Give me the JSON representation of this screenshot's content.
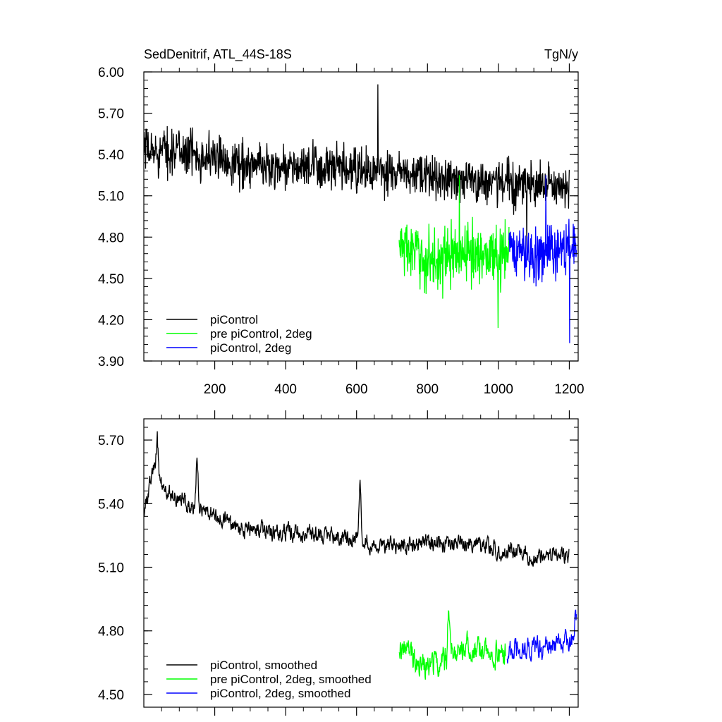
{
  "chart_data": [
    {
      "type": "line",
      "title": "SedDenitrif, ATL_44S-18S",
      "units": "TgN/y",
      "xlim": [
        0,
        1225
      ],
      "ylim": [
        3.9,
        6.0
      ],
      "xticks": [
        200,
        400,
        600,
        800,
        1000,
        1200
      ],
      "xtick_labels": [
        "200",
        "400",
        "600",
        "800",
        "1000",
        "1200"
      ],
      "yticks": [
        3.9,
        4.2,
        4.5,
        4.8,
        5.1,
        5.4,
        5.7,
        6.0
      ],
      "ytick_labels": [
        "3.90",
        "4.20",
        "4.50",
        "4.80",
        "5.10",
        "5.40",
        "5.70",
        "6.00"
      ],
      "legend_position": "bottom-left",
      "grid": false,
      "series": [
        {
          "name": "piControl",
          "color": "#000000",
          "x_range": [
            1,
            1200
          ],
          "trend": [
            [
              0,
              5.42
            ],
            [
              100,
              5.43
            ],
            [
              300,
              5.32
            ],
            [
              500,
              5.3
            ],
            [
              700,
              5.26
            ],
            [
              900,
              5.22
            ],
            [
              1100,
              5.18
            ],
            [
              1200,
              5.14
            ]
          ],
          "noise": 0.13,
          "extrema": {
            "max": 5.91,
            "min": 4.71
          }
        },
        {
          "name": "pre piControl, 2deg",
          "color": "#00ff00",
          "x_range": [
            720,
            1030
          ],
          "trend": [
            [
              720,
              4.75
            ],
            [
              800,
              4.62
            ],
            [
              900,
              4.68
            ],
            [
              1030,
              4.68
            ]
          ],
          "noise": 0.17,
          "extrema": {
            "max": 5.25,
            "min": 4.14
          }
        },
        {
          "name": "piControl, 2deg",
          "color": "#0000ff",
          "x_range": [
            1030,
            1220
          ],
          "trend": [
            [
              1030,
              4.7
            ],
            [
              1120,
              4.67
            ],
            [
              1220,
              4.75
            ]
          ],
          "noise": 0.16,
          "extrema": {
            "max": 5.25,
            "min": 4.03
          }
        }
      ]
    },
    {
      "type": "line",
      "xlim": [
        0,
        1225
      ],
      "ylim": [
        4.44,
        5.8
      ],
      "xticks": [
        200,
        400,
        600,
        800,
        1000,
        1200
      ],
      "yticks": [
        4.5,
        4.8,
        5.1,
        5.4,
        5.7
      ],
      "ytick_labels": [
        "4.50",
        "4.80",
        "5.10",
        "5.40",
        "5.70"
      ],
      "legend_position": "bottom-left",
      "grid": false,
      "series": [
        {
          "name": "piControl, smoothed",
          "color": "#000000",
          "x_range": [
            1,
            1200
          ],
          "trend": [
            [
              0,
              5.36
            ],
            [
              30,
              5.58
            ],
            [
              60,
              5.46
            ],
            [
              150,
              5.38
            ],
            [
              300,
              5.27
            ],
            [
              500,
              5.26
            ],
            [
              700,
              5.2
            ],
            [
              900,
              5.22
            ],
            [
              1100,
              5.15
            ],
            [
              1200,
              5.16
            ]
          ],
          "noise": 0.045,
          "peaks": [
            [
              38,
              5.7
            ],
            [
              150,
              5.63
            ],
            [
              610,
              5.5
            ]
          ]
        },
        {
          "name": "pre piControl, 2deg, smoothed",
          "color": "#00ff00",
          "x_range": [
            720,
            1020
          ],
          "trend": [
            [
              720,
              4.74
            ],
            [
              800,
              4.62
            ],
            [
              900,
              4.73
            ],
            [
              1020,
              4.68
            ]
          ],
          "noise": 0.07,
          "peaks": [
            [
              860,
              4.92
            ]
          ]
        },
        {
          "name": "piControl, 2deg, smoothed",
          "color": "#0000ff",
          "x_range": [
            1025,
            1220
          ],
          "trend": [
            [
              1025,
              4.7
            ],
            [
              1120,
              4.72
            ],
            [
              1220,
              4.75
            ]
          ],
          "noise": 0.06,
          "peaks": [
            [
              1218,
              4.94
            ]
          ]
        }
      ]
    }
  ]
}
